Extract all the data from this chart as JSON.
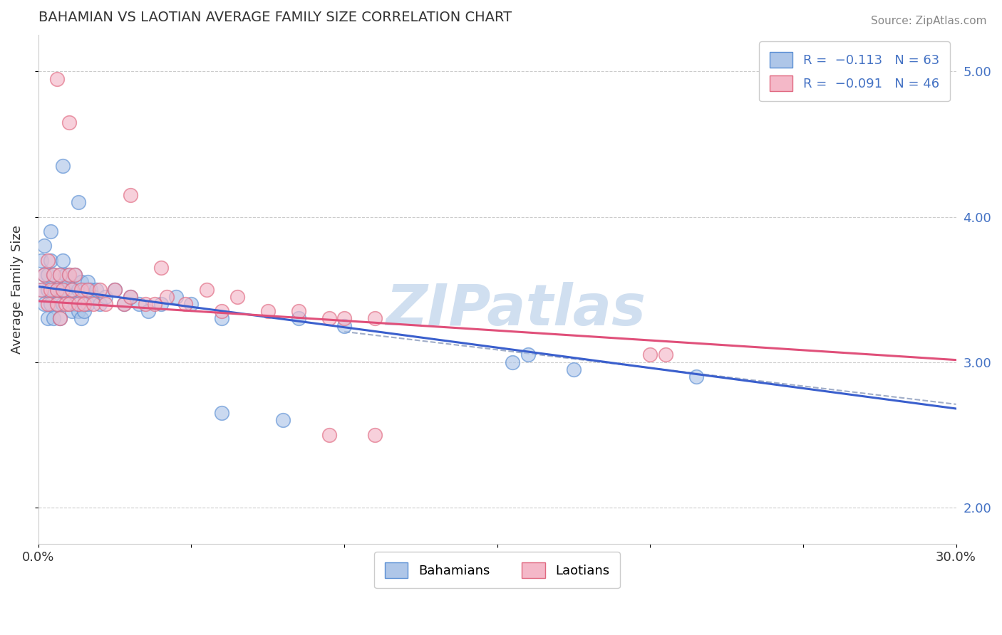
{
  "title": "BAHAMIAN VS LAOTIAN AVERAGE FAMILY SIZE CORRELATION CHART",
  "source": "Source: ZipAtlas.com",
  "ylabel": "Average Family Size",
  "xlim": [
    0.0,
    0.3
  ],
  "ylim": [
    1.75,
    5.25
  ],
  "ytick_color": "#4472c4",
  "bahamian_color": "#aec6e8",
  "laotian_color": "#f4b8c8",
  "bahamian_edge": "#5b8fd4",
  "laotian_edge": "#e06880",
  "trend_blue": "#3a5fcd",
  "trend_pink": "#e0507a",
  "dashed_color": "#8899bb",
  "watermark": "ZIPatlas",
  "watermark_color": "#d0dff0",
  "legend_label1": "Bahamians",
  "legend_label2": "Laotians",
  "bah_intercept": 3.52,
  "bah_slope": -2.8,
  "lao_intercept": 3.42,
  "lao_slope": -1.35,
  "dash_intercept": 3.46,
  "dash_slope": -2.5
}
